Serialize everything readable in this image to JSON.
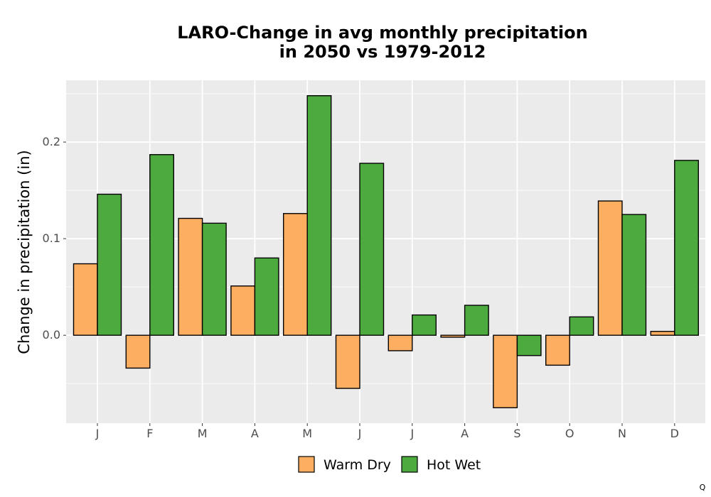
{
  "chart_data": {
    "type": "bar",
    "title_lines": [
      "LARO-Change in avg monthly precipitation",
      "in 2050 vs 1979-2012"
    ],
    "xlabel": "",
    "ylabel": "Change in precipitation (in)",
    "categories": [
      "J",
      "F",
      "M",
      "A",
      "M",
      "J",
      "J",
      "A",
      "S",
      "O",
      "N",
      "D"
    ],
    "series": [
      {
        "name": "Warm Dry",
        "color": "#fdae61",
        "values": [
          0.074,
          -0.034,
          0.121,
          0.051,
          0.126,
          -0.055,
          -0.016,
          -0.002,
          -0.075,
          -0.031,
          0.139,
          0.004
        ]
      },
      {
        "name": "Hot Wet",
        "color": "#4daa3f",
        "values": [
          0.146,
          0.187,
          0.116,
          0.08,
          0.248,
          0.178,
          0.021,
          0.031,
          -0.021,
          0.019,
          0.125,
          0.181
        ]
      }
    ],
    "ylim": [
      -0.091,
      0.264
    ],
    "yticks": [
      0.0,
      0.1,
      0.2
    ],
    "ytick_labels": [
      "0.0",
      "0.1",
      "0.2"
    ],
    "grid": true,
    "legend_position": "bottom",
    "panel_color": "#ebebeb",
    "grid_color": "#ffffff"
  },
  "corner_mark": "Q"
}
